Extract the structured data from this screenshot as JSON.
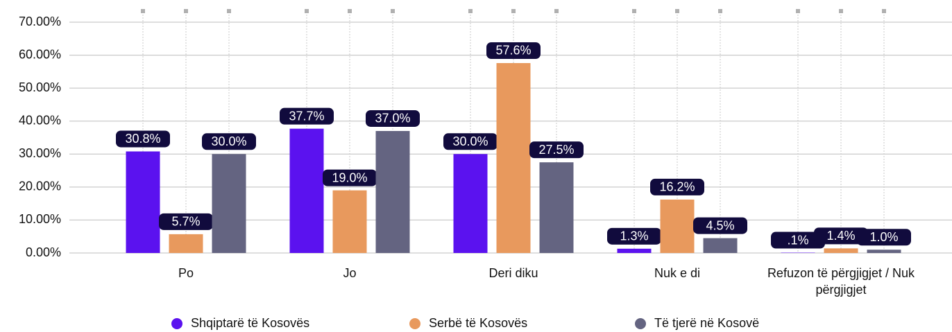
{
  "chart_data": {
    "type": "bar",
    "categories": [
      "Po",
      "Jo",
      "Deri diku",
      "Nuk e di",
      "Refuzon të përgjigjet / Nuk përgjigjet"
    ],
    "series": [
      {
        "name": "Shqiptarë të Kosovës",
        "color": "#5b12ef",
        "values": [
          30.8,
          37.7,
          30.0,
          1.3,
          0.1
        ],
        "value_labels": [
          "30.8%",
          "37.7%",
          "30.0%",
          "1.3%",
          ".1%"
        ]
      },
      {
        "name": "Serbë të Kosovës",
        "color": "#e8995d",
        "values": [
          5.7,
          19.0,
          57.6,
          16.2,
          1.4
        ],
        "value_labels": [
          "5.7%",
          "19.0%",
          "57.6%",
          "16.2%",
          "1.4%"
        ]
      },
      {
        "name": "Të tjerë në Kosovë",
        "color": "#646481",
        "values": [
          30.0,
          37.0,
          27.5,
          4.5,
          1.0
        ],
        "value_labels": [
          "30.0%",
          "37.0%",
          "27.5%",
          "4.5%",
          "1.0%"
        ]
      }
    ],
    "ylim": [
      0,
      70
    ],
    "yticks": [
      {
        "value": 0,
        "label": "0.00%"
      },
      {
        "value": 10,
        "label": "10.00%"
      },
      {
        "value": 20,
        "label": "20.00%"
      },
      {
        "value": 30,
        "label": "30.00%"
      },
      {
        "value": 40,
        "label": "40.00%"
      },
      {
        "value": 50,
        "label": "50.00%"
      },
      {
        "value": 60,
        "label": "60.00%"
      },
      {
        "value": 70,
        "label": "70.00%"
      }
    ],
    "grid": true
  }
}
